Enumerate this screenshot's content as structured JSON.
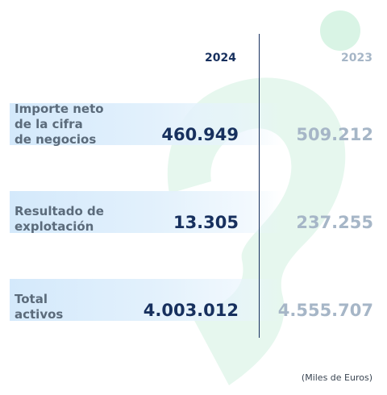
{
  "chart_data": {
    "type": "table",
    "columns": [
      "2024",
      "2023"
    ],
    "rows": [
      {
        "label_lines": [
          "Importe neto",
          "de la cifra",
          "de negocios"
        ],
        "v2024": "460.949",
        "v2023": "509.212"
      },
      {
        "label_lines": [
          "Resultado de",
          "explotación"
        ],
        "v2024": "13.305",
        "v2023": "237.255"
      },
      {
        "label_lines": [
          "Total",
          "activos"
        ],
        "v2024": "4.003.012",
        "v2023": "4.555.707"
      }
    ],
    "note": "(Miles de Euros)"
  },
  "colors": {
    "accent_dark": "#17305e",
    "muted": "#a6b6c7",
    "label": "#5b6b7b",
    "band": "#d4e9fb",
    "logo_green": "#e6f7ee"
  },
  "icons": {
    "background": "brand-logo-watermark"
  }
}
